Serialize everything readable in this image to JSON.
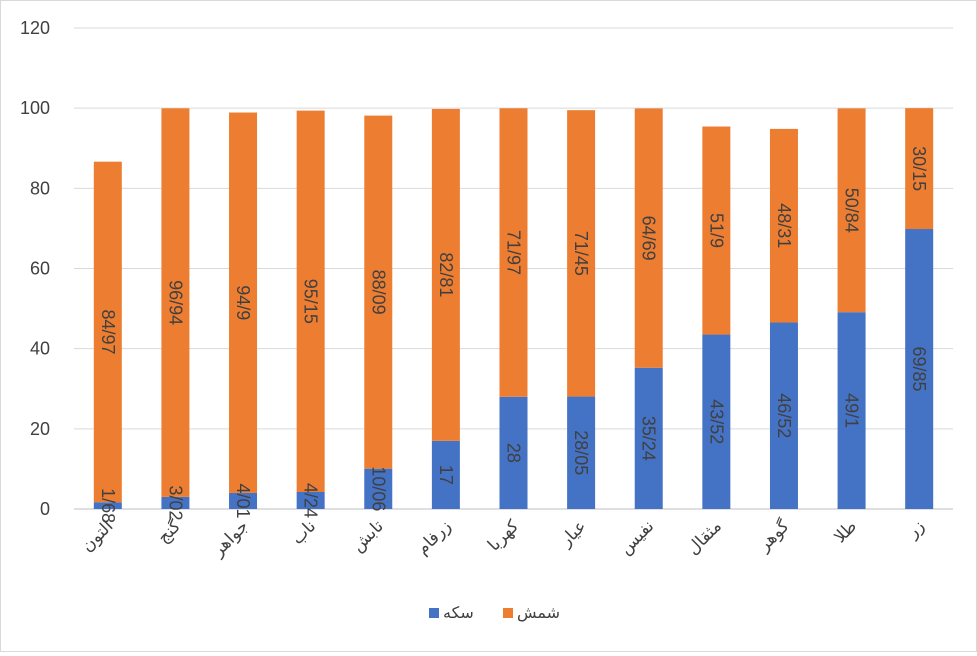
{
  "chart_data": {
    "type": "bar",
    "stacked": true,
    "title": "",
    "xlabel": "",
    "ylabel": "",
    "ylim": [
      0,
      120
    ],
    "yticks": [
      0,
      20,
      40,
      60,
      80,
      100,
      120
    ],
    "grid": true,
    "legend_position": "bottom",
    "categories": [
      "التون",
      "گنج",
      "جواهر",
      "ناب",
      "تابش",
      "زرفام",
      "کهربا",
      "عیار",
      "نفیس",
      "مثقال",
      "گوهر",
      "طلا",
      "زر"
    ],
    "series": [
      {
        "name": "سکه",
        "color": "#4472c4",
        "values": [
          1.68,
          3.02,
          4.01,
          4.24,
          10.06,
          17,
          28,
          28.05,
          35.24,
          43.52,
          46.52,
          49.1,
          69.85
        ],
        "labels": [
          "1/68",
          "3/02",
          "4/01",
          "4/24",
          "10/06",
          "17",
          "28",
          "28/05",
          "35/24",
          "43/52",
          "46/52",
          "49/1",
          "69/85"
        ]
      },
      {
        "name": "شمش",
        "color": "#ed7d31",
        "values": [
          84.97,
          96.94,
          94.9,
          95.15,
          88.09,
          82.81,
          71.97,
          71.45,
          64.69,
          51.9,
          48.31,
          50.84,
          30.15
        ],
        "labels": [
          "84/97",
          "96/94",
          "94/9",
          "95/15",
          "88/09",
          "82/81",
          "71/97",
          "71/45",
          "64/69",
          "51/9",
          "48/31",
          "50/84",
          "30/15"
        ]
      }
    ]
  }
}
